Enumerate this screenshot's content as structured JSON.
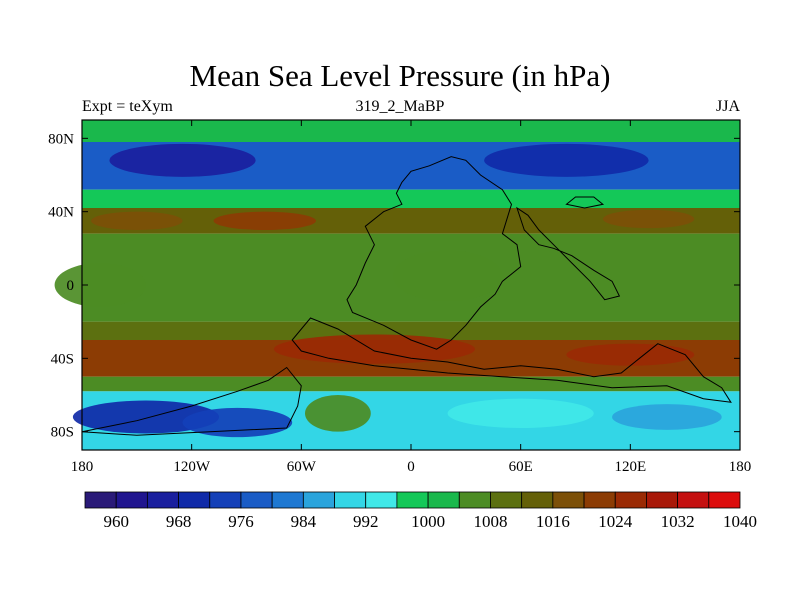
{
  "chart_data": {
    "type": "heatmap",
    "title": "Mean Sea Level Pressure (in hPa)",
    "subtitle_left": "Expt = teXym",
    "subtitle_center": "319_2_MaBP",
    "subtitle_right": "JJA",
    "x_ticks": [
      "180",
      "120W",
      "60W",
      "0",
      "60E",
      "120E",
      "180"
    ],
    "y_ticks": [
      "80N",
      "40N",
      "0",
      "40S",
      "80S"
    ],
    "xlim": [
      -180,
      180
    ],
    "ylim": [
      -90,
      90
    ],
    "colorbar": {
      "labels": [
        "960",
        "968",
        "976",
        "984",
        "992",
        "1000",
        "1008",
        "1016",
        "1024",
        "1032",
        "1040"
      ],
      "colors": [
        "#2a1a78",
        "#20158f",
        "#1a1f9e",
        "#102aa8",
        "#1440b8",
        "#1a5cc6",
        "#1e78d2",
        "#2aa4dc",
        "#33d6e6",
        "#40e8e8",
        "#14c858",
        "#1ab84c",
        "#4c8c24",
        "#5c7010",
        "#646008",
        "#7c5008",
        "#8c3c04",
        "#9a2a04",
        "#a81808",
        "#c41010",
        "#dc0c0c"
      ]
    },
    "zones": [
      {
        "lat": [
          90,
          78
        ],
        "value": 996
      },
      {
        "lat": [
          78,
          52
        ],
        "value": 974
      },
      {
        "lat": [
          52,
          42
        ],
        "value": 994
      },
      {
        "lat": [
          42,
          28
        ],
        "value": 1008
      },
      {
        "lat": [
          28,
          -20
        ],
        "value": 1001
      },
      {
        "lat": [
          -20,
          -30
        ],
        "value": 1006
      },
      {
        "lat": [
          -30,
          -50
        ],
        "value": 1016
      },
      {
        "lat": [
          -50,
          -58
        ],
        "value": 1000
      },
      {
        "lat": [
          -58,
          -90
        ],
        "value": 985
      }
    ]
  }
}
